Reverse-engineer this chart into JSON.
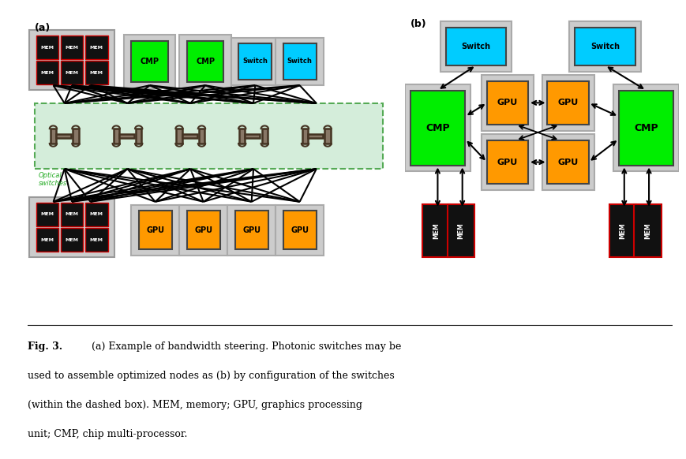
{
  "fig_width": 8.69,
  "fig_height": 5.82,
  "bg_color": "#ffffff",
  "colors": {
    "mem_bg": "#111111",
    "mem_border": "#cc0000",
    "mem_text": "#ffffff",
    "cmp_bg": "#00ee00",
    "gpu_bg": "#ff9900",
    "switch_bg": "#00ccff",
    "outer_box": "#aaaaaa",
    "outer_fill": "#dddddd",
    "optical_bg": "#d4edda",
    "optical_border": "#55aa55",
    "optical_text": "#22aa22",
    "switch_icon_fill": "#887766",
    "switch_icon_edge": "#443322",
    "line_color": "#000000"
  },
  "label_a": "(a)",
  "label_b": "(b)",
  "caption_bold": "Fig. 3.",
  "caption_rest": "   (a) Example of bandwidth steering. Photonic switches may be used to assemble optimized nodes as (b) by configuration of the switches (within the dashed box). MEM, memory; GPU, graphics processing unit; CMP, chip multi-processor."
}
